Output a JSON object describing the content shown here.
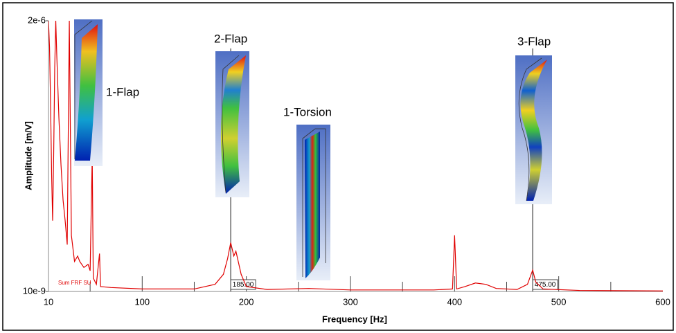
{
  "chart_data": {
    "type": "line",
    "x_label": "Frequency  [Hz]",
    "y_label": "Amplitude  [m/V]",
    "log_y": true,
    "xlim": [
      10,
      600
    ],
    "ylim": [
      1e-08,
      2e-06
    ],
    "xticks": [
      10,
      100,
      200,
      300,
      400,
      500,
      600
    ],
    "minor_xticks": [
      50,
      150,
      250,
      350,
      450,
      550
    ],
    "yticks": [
      {
        "value": 1e-08,
        "label": "10e-9"
      },
      {
        "value": 2e-06,
        "label": "2e-6"
      }
    ],
    "x": [
      10,
      11,
      12,
      13,
      14,
      15,
      16,
      17,
      18,
      20,
      22,
      24,
      26,
      28,
      30,
      32,
      35,
      38,
      40,
      44,
      48,
      50,
      52,
      53,
      56,
      59,
      60,
      70,
      100,
      150,
      170,
      178,
      182,
      185,
      188,
      190,
      195,
      200,
      220,
      260,
      300,
      380,
      398,
      400,
      402,
      410,
      420,
      430,
      440,
      460,
      470,
      475,
      478,
      485,
      520,
      600
    ],
    "series": [
      {
        "name": "Sum FRF SU",
        "color": "#e00000",
        "values": [
          2e-06,
          1.2e-06,
          4e-07,
          1e-07,
          4e-08,
          1.5e-07,
          8e-07,
          2e-06,
          1e-06,
          3e-07,
          1.2e-07,
          6e-08,
          4e-08,
          2.5e-08,
          2e-06,
          3e-08,
          1.8e-08,
          2e-08,
          1.8e-08,
          1.6e-08,
          1.7e-08,
          1.5e-08,
          1.42e-07,
          1.3e-08,
          1.15e-08,
          2.1e-08,
          1.1e-08,
          1.08e-08,
          1.05e-08,
          1.05e-08,
          1.15e-08,
          1.4e-08,
          1.9e-08,
          2.6e-08,
          2e-08,
          2.2e-08,
          1.4e-08,
          1.1e-08,
          1.04e-08,
          1.06e-08,
          1.03e-08,
          1.03e-08,
          1.05e-08,
          3e-08,
          1.05e-08,
          1.1e-08,
          1.18e-08,
          1.15e-08,
          1.06e-08,
          1.04e-08,
          1.15e-08,
          1.52e-08,
          1.2e-08,
          1.05e-08,
          1.02e-08,
          1.01e-08
        ]
      }
    ],
    "cursors": [
      {
        "value": 185,
        "label": "185.00"
      },
      {
        "value": 475,
        "label": "475.00"
      }
    ],
    "annotations": [
      "1-Flap",
      "2-Flap",
      "1-Torsion",
      "3-Flap"
    ]
  }
}
